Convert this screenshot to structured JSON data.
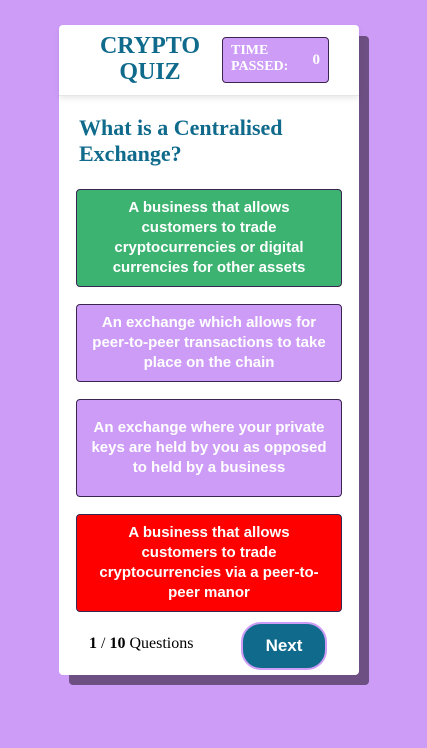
{
  "header": {
    "title": "CRYPTO QUIZ",
    "timer_label": "TIME PASSED:",
    "timer_value": "0"
  },
  "question": "What is a Centralised Exchange?",
  "answers": [
    {
      "text": "A business that allows customers to trade cryptocurrencies or digital currencies for other assets",
      "state": "correct",
      "color": "#3cb371"
    },
    {
      "text": "An exchange which allows for peer-to-peer transactions to take place on the chain",
      "state": "neutral",
      "color": "#cd9cf7"
    },
    {
      "text": "An exchange where your private keys are held by you as opposed to held by a business",
      "state": "neutral",
      "color": "#cd9cf7"
    },
    {
      "text": "A business that allows customers to trade cryptocurrencies via a peer-to-peer manor",
      "state": "incorrect",
      "color": "#ff0000"
    }
  ],
  "footer": {
    "current": "1",
    "separator": "/",
    "total": "10",
    "suffix": "Questions",
    "next_label": "Next"
  },
  "colors": {
    "background": "#cd9cf7",
    "accent": "#0f6a8c",
    "correct": "#3cb371",
    "incorrect": "#ff0000"
  }
}
